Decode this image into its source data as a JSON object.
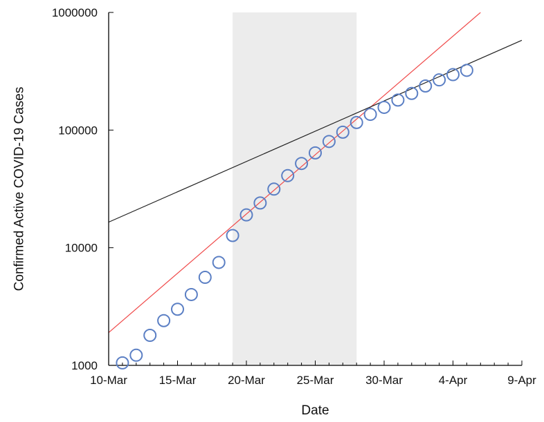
{
  "chart_data": {
    "type": "scatter",
    "title": "",
    "xlabel": "Date",
    "ylabel": "Confirmed Active COVID-19 Cases",
    "y_scale": "log",
    "ylim": [
      1000,
      1000000
    ],
    "xlim": [
      "2020-03-10",
      "2020-04-09"
    ],
    "x_tick_labels": [
      "10-Mar",
      "15-Mar",
      "20-Mar",
      "25-Mar",
      "30-Mar",
      "4-Apr",
      "9-Apr"
    ],
    "y_tick_labels": [
      "1000",
      "10000",
      "100000",
      "1000000"
    ],
    "grid": false,
    "shaded_region": {
      "from": "2020-03-19",
      "to": "2020-03-28",
      "color": "#ececec"
    },
    "series": [
      {
        "marker": "open-circle",
        "color": "#5b7fc4",
        "points": [
          {
            "x": "2020-03-11",
            "y": 1050
          },
          {
            "x": "2020-03-12",
            "y": 1220
          },
          {
            "x": "2020-03-13",
            "y": 1800
          },
          {
            "x": "2020-03-14",
            "y": 2400
          },
          {
            "x": "2020-03-15",
            "y": 3000
          },
          {
            "x": "2020-03-16",
            "y": 4000
          },
          {
            "x": "2020-03-17",
            "y": 5600
          },
          {
            "x": "2020-03-18",
            "y": 7500
          },
          {
            "x": "2020-03-19",
            "y": 12700
          },
          {
            "x": "2020-03-20",
            "y": 19000
          },
          {
            "x": "2020-03-21",
            "y": 24000
          },
          {
            "x": "2020-03-22",
            "y": 31500
          },
          {
            "x": "2020-03-23",
            "y": 41000
          },
          {
            "x": "2020-03-24",
            "y": 52000
          },
          {
            "x": "2020-03-25",
            "y": 64000
          },
          {
            "x": "2020-03-26",
            "y": 80000
          },
          {
            "x": "2020-03-27",
            "y": 96000
          },
          {
            "x": "2020-03-28",
            "y": 116000
          },
          {
            "x": "2020-03-29",
            "y": 136000
          },
          {
            "x": "2020-03-30",
            "y": 156000
          },
          {
            "x": "2020-03-31",
            "y": 180000
          },
          {
            "x": "2020-04-01",
            "y": 205000
          },
          {
            "x": "2020-04-02",
            "y": 237000
          },
          {
            "x": "2020-04-03",
            "y": 267000
          },
          {
            "x": "2020-04-04",
            "y": 296000
          },
          {
            "x": "2020-04-05",
            "y": 322000
          }
        ]
      }
    ],
    "trend_lines": [
      {
        "color": "#f04a4a",
        "points": [
          {
            "x": "2020-03-10",
            "y": 1900
          },
          {
            "x": "2020-04-06",
            "y": 1000000
          }
        ]
      },
      {
        "color": "#222222",
        "points": [
          {
            "x": "2020-03-10",
            "y": 16500
          },
          {
            "x": "2020-04-09",
            "y": 580000
          }
        ]
      }
    ],
    "colors": {
      "axis": "#000000",
      "shade": "#ececec",
      "markers": "#5b7fc4",
      "trend_red": "#f04a4a",
      "trend_black": "#222222"
    }
  }
}
